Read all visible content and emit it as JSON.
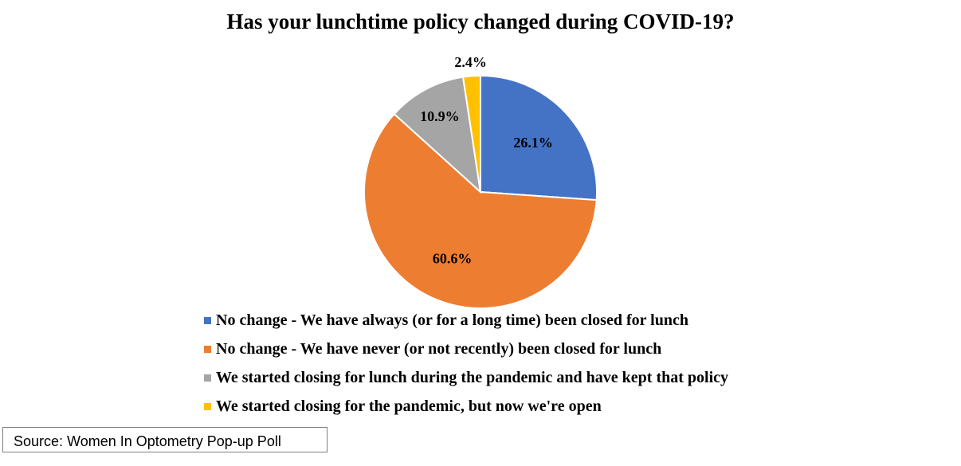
{
  "chart_data": {
    "type": "pie",
    "title": "Has your lunchtime policy changed during COVID-19?",
    "slices": [
      {
        "label": "No change - We have always (or for a long time) been closed for lunch",
        "value": 26.1,
        "display": "26.1%",
        "color": "#4472C4"
      },
      {
        "label": "No change - We have never (or not recently) been closed for lunch",
        "value": 60.6,
        "display": "60.6%",
        "color": "#ED7D31"
      },
      {
        "label": "We started closing for lunch during the pandemic and have kept that policy",
        "value": 10.9,
        "display": "10.9%",
        "color": "#A5A5A5"
      },
      {
        "label": "We started closing for the pandemic, but now we're open",
        "value": 2.4,
        "display": "2.4%",
        "color": "#FFC000"
      }
    ],
    "legend_position": "bottom-left"
  },
  "source": "Source: Women In Optometry Pop-up Poll"
}
